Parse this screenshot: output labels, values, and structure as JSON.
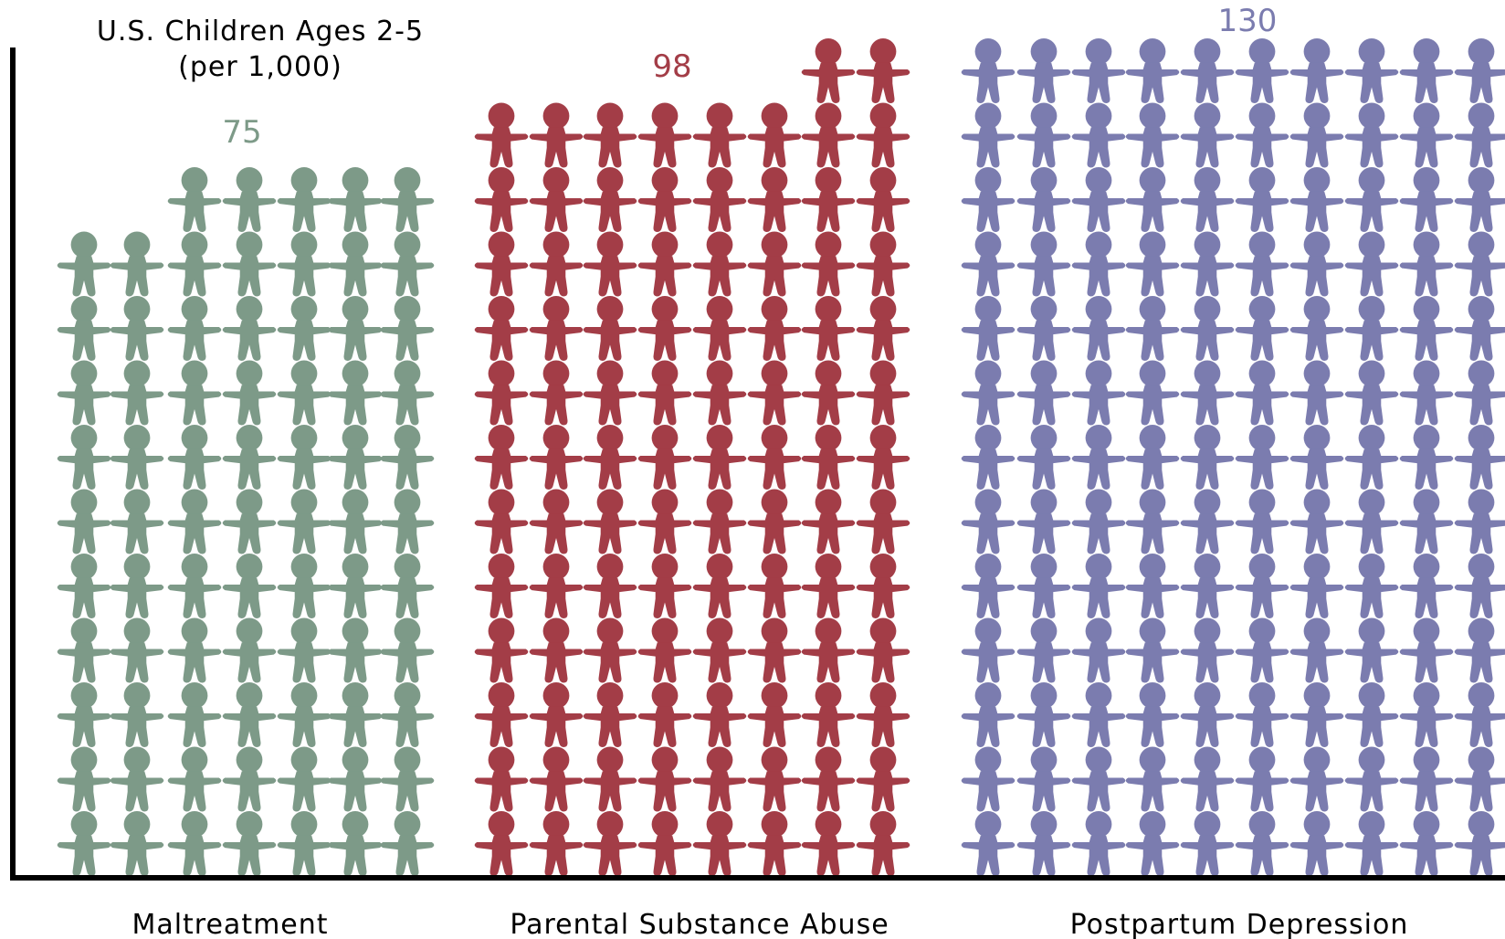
{
  "chart_data": {
    "type": "pictograph",
    "title": "U.S. Children Ages 2-5",
    "subtitle": "(per 1,000)",
    "categories": [
      "Maltreatment",
      "Parental Substance Abuse",
      "Postpartum Depression"
    ],
    "values": [
      75,
      98,
      130
    ],
    "value_labels": [
      "75",
      "98",
      "130"
    ],
    "unit_per_icon": 1,
    "icon": "child-figure-icon",
    "colors": [
      "#7d9a88",
      "#a33d47",
      "#7b7caf"
    ],
    "axis_color": "#000000",
    "grid": false
  }
}
